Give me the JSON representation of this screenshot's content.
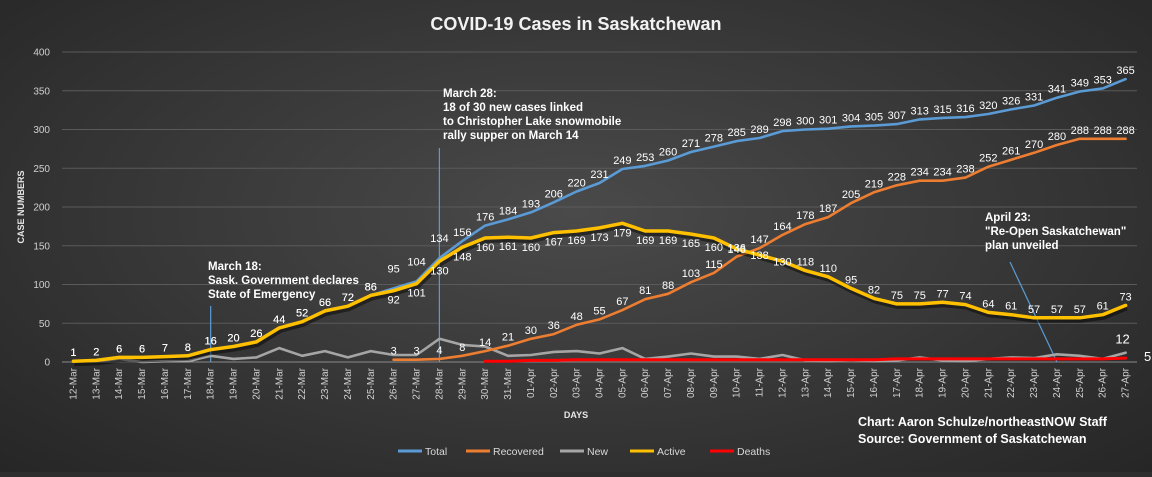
{
  "chart_data": {
    "type": "line",
    "title": "COVID-19 Cases in Saskatchewan",
    "xlabel": "DAYS",
    "ylabel": "CASE NUMBERS",
    "ylim": [
      0,
      400
    ],
    "yticks": [
      0,
      50,
      100,
      150,
      200,
      250,
      300,
      350,
      400
    ],
    "grid": true,
    "legend_position": "bottom",
    "categories": [
      "12-Mar",
      "13-Mar",
      "14-Mar",
      "15-Mar",
      "16-Mar",
      "17-Mar",
      "18-Mar",
      "19-Mar",
      "20-Mar",
      "21-Mar",
      "22-Mar",
      "23-Mar",
      "24-Mar",
      "25-Mar",
      "26-Mar",
      "27-Mar",
      "28-Mar",
      "29-Mar",
      "30-Mar",
      "31-Mar",
      "01-Apr",
      "02-Apr",
      "03-Apr",
      "04-Apr",
      "05-Apr",
      "06-Apr",
      "07-Apr",
      "08-Apr",
      "09-Apr",
      "10-Apr",
      "11-Apr",
      "12-Apr",
      "13-Apr",
      "14-Apr",
      "15-Apr",
      "16-Apr",
      "17-Apr",
      "18-Apr",
      "19-Apr",
      "20-Apr",
      "21-Apr",
      "22-Apr",
      "23-Apr",
      "24-Apr",
      "25-Apr",
      "26-Apr",
      "27-Apr"
    ],
    "series": [
      {
        "name": "Total",
        "color": "#5b9bd5",
        "labeled": true,
        "values": [
          1,
          2,
          6,
          6,
          7,
          8,
          16,
          20,
          26,
          44,
          52,
          66,
          72,
          86,
          95,
          104,
          134,
          156,
          176,
          184,
          193,
          206,
          220,
          231,
          249,
          253,
          260,
          271,
          278,
          285,
          289,
          298,
          300,
          301,
          304,
          305,
          307,
          313,
          315,
          316,
          320,
          326,
          331,
          341,
          349,
          353,
          365
        ],
        "labels": [
          "1",
          "2",
          "6",
          "6",
          "7",
          "8",
          "16",
          "20",
          "26",
          "44",
          "52",
          "66",
          "72",
          "86",
          "95",
          "104",
          "134",
          "156",
          "176",
          "184",
          "193",
          "206",
          "220",
          "231",
          "249",
          "253",
          "260",
          "271",
          "278",
          "285",
          "289",
          "298",
          "300",
          "301",
          "304",
          "305",
          "307",
          "313",
          "315",
          "316",
          "320",
          "326",
          "331",
          "341",
          "349",
          "353",
          "365"
        ]
      },
      {
        "name": "Recovered",
        "color": "#ed7d31",
        "labeled": true,
        "values": [
          0,
          0,
          0,
          0,
          0,
          0,
          0,
          0,
          0,
          0,
          0,
          0,
          0,
          0,
          3,
          3,
          4,
          8,
          14,
          21,
          30,
          36,
          48,
          55,
          67,
          81,
          88,
          103,
          115,
          136,
          147,
          164,
          178,
          187,
          205,
          219,
          228,
          234,
          234,
          238,
          252,
          261,
          270,
          280,
          288,
          288,
          288
        ],
        "labels": [
          "",
          "",
          "",
          "",
          "",
          "",
          "",
          "",
          "",
          "",
          "",
          "",
          "",
          "",
          "3",
          "3",
          "4",
          "8",
          "14",
          "21",
          "30",
          "36",
          "48",
          "55",
          "67",
          "81",
          "88",
          "103",
          "115",
          "136",
          "147",
          "164",
          "178",
          "187",
          "205",
          "219",
          "228",
          "234",
          "234",
          "238",
          "252",
          "261",
          "270",
          "280",
          "288",
          "288",
          "288"
        ]
      },
      {
        "name": "New",
        "color": "#a5a5a5",
        "labeled": false,
        "values": [
          1,
          1,
          4,
          0,
          1,
          1,
          8,
          4,
          6,
          18,
          8,
          14,
          6,
          14,
          9,
          9,
          30,
          22,
          20,
          8,
          9,
          13,
          14,
          11,
          18,
          4,
          7,
          11,
          7,
          7,
          4,
          9,
          2,
          1,
          3,
          1,
          2,
          6,
          2,
          1,
          4,
          6,
          5,
          10,
          8,
          4,
          12
        ],
        "labels": []
      },
      {
        "name": "Active",
        "color": "#ffc000",
        "labeled": true,
        "values": [
          1,
          2,
          6,
          6,
          7,
          8,
          16,
          20,
          26,
          44,
          52,
          66,
          72,
          86,
          92,
          101,
          130,
          148,
          160,
          161,
          160,
          167,
          169,
          173,
          179,
          169,
          169,
          165,
          160,
          146,
          138,
          130,
          118,
          110,
          95,
          82,
          75,
          75,
          77,
          74,
          64,
          61,
          57,
          57,
          57,
          61,
          73
        ],
        "labels": [
          "1",
          "2",
          "6",
          "6",
          "7",
          "8",
          "16",
          "20",
          "26",
          "44",
          "52",
          "66",
          "72",
          "86",
          "92",
          "101",
          "130",
          "148",
          "160",
          "161",
          "160",
          "167",
          "169",
          "173",
          "179",
          "169",
          "169",
          "165",
          "160",
          "146",
          "138",
          "130",
          "118",
          "110",
          "95",
          "82",
          "75",
          "75",
          "77",
          "74",
          "64",
          "61",
          "57",
          "57",
          "57",
          "61",
          "73"
        ]
      },
      {
        "name": "Deaths",
        "color": "#ff0000",
        "labeled": false,
        "values": [
          0,
          0,
          0,
          0,
          0,
          0,
          0,
          0,
          0,
          0,
          0,
          0,
          0,
          0,
          0,
          0,
          0,
          0,
          1,
          1,
          2,
          2,
          3,
          3,
          3,
          3,
          3,
          3,
          3,
          3,
          3,
          3,
          3,
          3,
          3,
          3,
          4,
          4,
          4,
          4,
          4,
          4,
          4,
          4,
          4,
          4,
          5
        ],
        "labels": []
      }
    ],
    "end_labels": {
      "new": "12",
      "deaths": "5"
    },
    "annotations": [
      {
        "at": "18-Mar",
        "lines": [
          "March 18:",
          "Sask. Government declares",
          "State of Emergency"
        ]
      },
      {
        "at": "28-Mar",
        "lines": [
          "March 28:",
          "18 of 30 new cases linked",
          "to Christopher Lake snowmobile",
          "rally supper on March 14"
        ]
      },
      {
        "at": "24-Apr",
        "lines": [
          "April 23:",
          "\"Re-Open Saskatchewan\"",
          "plan unveiled"
        ]
      }
    ],
    "credits": [
      "Chart: Aaron Schulze/northeastNOW Staff",
      "Source: Government of Saskatchewan"
    ]
  }
}
